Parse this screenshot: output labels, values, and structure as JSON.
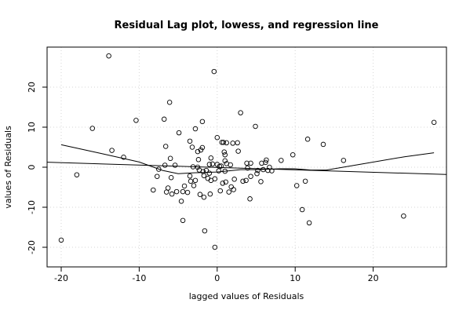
{
  "chart_data": {
    "type": "scatter",
    "title": "Residual Lag plot, lowess, and regression line",
    "xlabel": "lagged values of Residuals",
    "ylabel": "values of Residuals",
    "xlim": [
      -22,
      30
    ],
    "ylim": [
      -22,
      30
    ],
    "xticks": [
      -20,
      -10,
      0,
      10,
      20
    ],
    "yticks": [
      -20,
      -10,
      0,
      10,
      20
    ],
    "grid": true,
    "points": [
      [
        -20.0,
        -18.2
      ],
      [
        -18.0,
        -1.9
      ],
      [
        -16.0,
        9.7
      ],
      [
        -13.9,
        27.8
      ],
      [
        -13.5,
        4.2
      ],
      [
        -12.0,
        2.5
      ],
      [
        -10.4,
        11.7
      ],
      [
        -8.2,
        -5.7
      ],
      [
        -7.7,
        -2.3
      ],
      [
        -7.5,
        -0.5
      ],
      [
        -6.8,
        12.0
      ],
      [
        -6.6,
        5.2
      ],
      [
        -6.7,
        0.5
      ],
      [
        -6.5,
        -6.2
      ],
      [
        -6.3,
        -5.2
      ],
      [
        -6.1,
        16.2
      ],
      [
        -6.0,
        2.2
      ],
      [
        -5.9,
        -2.6
      ],
      [
        -5.8,
        -6.7
      ],
      [
        -5.4,
        0.5
      ],
      [
        -5.2,
        -6.1
      ],
      [
        -4.9,
        8.6
      ],
      [
        -4.6,
        -8.5
      ],
      [
        -4.4,
        -13.3
      ],
      [
        -4.4,
        -6.1
      ],
      [
        -4.2,
        -4.7
      ],
      [
        -3.8,
        -6.3
      ],
      [
        -3.5,
        6.5
      ],
      [
        -3.5,
        -2.2
      ],
      [
        -3.4,
        -3.5
      ],
      [
        -3.2,
        5.0
      ],
      [
        -3.1,
        0.1
      ],
      [
        -3.0,
        -4.6
      ],
      [
        -2.8,
        9.6
      ],
      [
        -2.8,
        -3.3
      ],
      [
        -2.5,
        3.9
      ],
      [
        -2.4,
        1.9
      ],
      [
        -2.5,
        0.0
      ],
      [
        -2.3,
        -0.7
      ],
      [
        -2.1,
        4.3
      ],
      [
        -2.2,
        -6.8
      ],
      [
        -1.9,
        4.9
      ],
      [
        -1.9,
        11.4
      ],
      [
        -1.8,
        -1.1
      ],
      [
        -1.7,
        -2.1
      ],
      [
        -1.7,
        -7.5
      ],
      [
        -1.6,
        -15.9
      ],
      [
        -1.4,
        -0.8
      ],
      [
        -1.2,
        -2.8
      ],
      [
        -1.0,
        0.7
      ],
      [
        -1.0,
        -1.5
      ],
      [
        -0.9,
        -6.7
      ],
      [
        -0.8,
        -3.3
      ],
      [
        -0.8,
        2.3
      ],
      [
        -0.6,
        0.8
      ],
      [
        -0.4,
        23.9
      ],
      [
        -0.3,
        -20.0
      ],
      [
        -0.3,
        -2.9
      ],
      [
        0.0,
        0.7
      ],
      [
        0.0,
        7.4
      ],
      [
        0.2,
        -0.9
      ],
      [
        0.3,
        0.2
      ],
      [
        0.4,
        -5.9
      ],
      [
        0.5,
        0.3
      ],
      [
        0.6,
        6.2
      ],
      [
        0.7,
        -4.0
      ],
      [
        0.8,
        6.2
      ],
      [
        0.9,
        3.8
      ],
      [
        1.0,
        -1.0
      ],
      [
        1.0,
        3.1
      ],
      [
        1.0,
        1.6
      ],
      [
        1.1,
        -3.7
      ],
      [
        1.2,
        0.9
      ],
      [
        1.2,
        6.1
      ],
      [
        1.5,
        -6.2
      ],
      [
        1.7,
        0.6
      ],
      [
        1.8,
        -4.9
      ],
      [
        2.0,
        6.0
      ],
      [
        2.1,
        -5.6
      ],
      [
        2.2,
        -3.0
      ],
      [
        2.6,
        6.1
      ],
      [
        2.7,
        4.0
      ],
      [
        3.0,
        13.6
      ],
      [
        3.3,
        -3.5
      ],
      [
        3.7,
        -3.3
      ],
      [
        3.8,
        1.0
      ],
      [
        3.9,
        -0.2
      ],
      [
        4.2,
        -7.9
      ],
      [
        4.3,
        1.0
      ],
      [
        4.3,
        -2.3
      ],
      [
        4.9,
        10.2
      ],
      [
        5.1,
        -1.6
      ],
      [
        5.2,
        -0.8
      ],
      [
        5.6,
        -3.6
      ],
      [
        5.7,
        1.0
      ],
      [
        5.9,
        -0.6
      ],
      [
        6.2,
        1.2
      ],
      [
        6.3,
        1.8
      ],
      [
        6.5,
        -0.8
      ],
      [
        6.7,
        0.0
      ],
      [
        7.0,
        -0.9
      ],
      [
        8.2,
        1.7
      ],
      [
        9.7,
        3.1
      ],
      [
        10.2,
        -4.6
      ],
      [
        10.9,
        -10.6
      ],
      [
        11.3,
        -3.5
      ],
      [
        11.6,
        7.0
      ],
      [
        11.8,
        -13.9
      ],
      [
        13.6,
        5.7
      ],
      [
        16.2,
        1.7
      ],
      [
        23.9,
        -12.2
      ],
      [
        27.8,
        11.2
      ]
    ],
    "lowess": [
      [
        -20,
        5.6
      ],
      [
        -15,
        3.5
      ],
      [
        -10,
        1.3
      ],
      [
        -7,
        -0.8
      ],
      [
        -5,
        -1.6
      ],
      [
        -3,
        -1.4
      ],
      [
        0,
        -1.2
      ],
      [
        3,
        -0.6
      ],
      [
        5,
        -0.6
      ],
      [
        8,
        -0.4
      ],
      [
        10,
        -0.4
      ],
      [
        12,
        -0.7
      ],
      [
        14,
        -0.7
      ],
      [
        18,
        0.6
      ],
      [
        24,
        2.6
      ],
      [
        27.8,
        3.6
      ]
    ],
    "regression": {
      "intercept": -0.056,
      "slope": -0.0589
    }
  }
}
